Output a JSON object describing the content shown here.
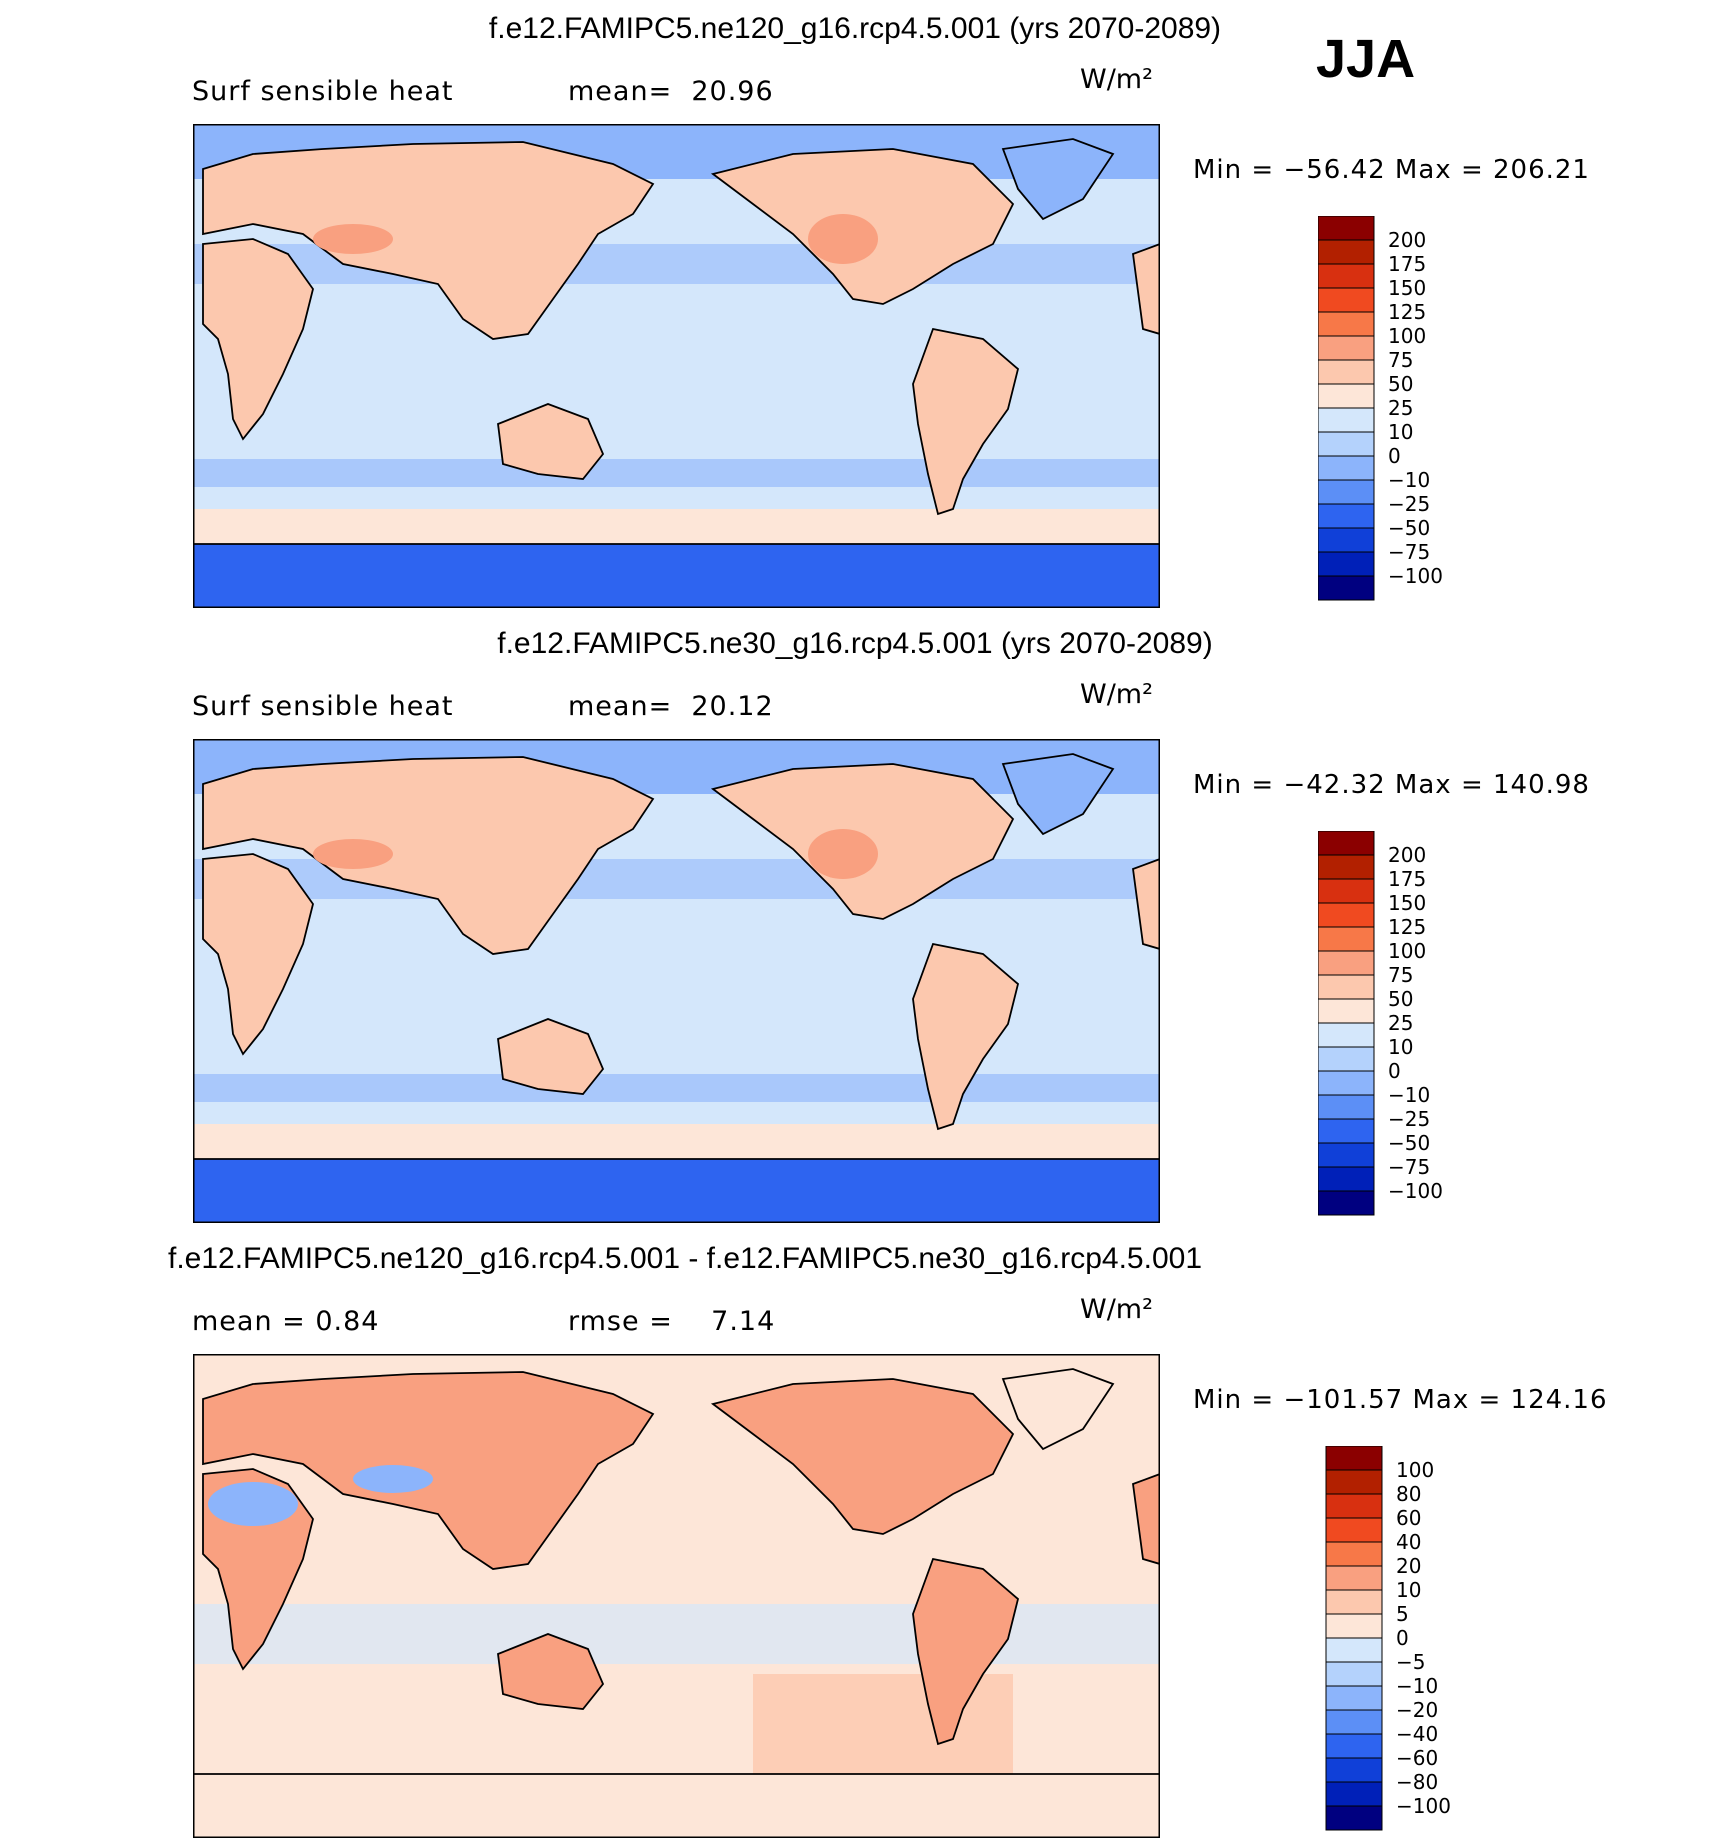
{
  "season_label": "JJA",
  "panels": [
    {
      "title": "f.e12.FAMIPC5.ne120_g16.rcp4.5.001 (yrs 2070-2089)",
      "left_label": "Surf sensible heat",
      "mid_label": "mean=  20.96",
      "units": "W/m²",
      "minmax": "Min = −56.42 Max = 206.21",
      "levels": [
        "200",
        "175",
        "150",
        "125",
        "100",
        "75",
        "50",
        "25",
        "10",
        "0",
        "−10",
        "−25",
        "−50",
        "−75",
        "−100"
      ],
      "colors": [
        "#8b0000",
        "#b22000",
        "#d83010",
        "#f04a20",
        "#f77848",
        "#f9a080",
        "#fcc8ae",
        "#fde6d8",
        "#d4e7fb",
        "#b4d2fc",
        "#8cb4fb",
        "#5c8ff6",
        "#2e64f0",
        "#1040d8",
        "#0020b8",
        "#000080"
      ]
    },
    {
      "title": "f.e12.FAMIPC5.ne30_g16.rcp4.5.001 (yrs 2070-2089)",
      "left_label": "Surf sensible heat",
      "mid_label": "mean=  20.12",
      "units": "W/m²",
      "minmax": "Min = −42.32 Max = 140.98",
      "levels": [
        "200",
        "175",
        "150",
        "125",
        "100",
        "75",
        "50",
        "25",
        "10",
        "0",
        "−10",
        "−25",
        "−50",
        "−75",
        "−100"
      ],
      "colors": [
        "#8b0000",
        "#b22000",
        "#d83010",
        "#f04a20",
        "#f77848",
        "#f9a080",
        "#fcc8ae",
        "#fde6d8",
        "#d4e7fb",
        "#b4d2fc",
        "#8cb4fb",
        "#5c8ff6",
        "#2e64f0",
        "#1040d8",
        "#0020b8",
        "#000080"
      ]
    },
    {
      "title": "f.e12.FAMIPC5.ne120_g16.rcp4.5.001 - f.e12.FAMIPC5.ne30_g16.rcp4.5.001",
      "left_label": "mean =    0.84",
      "mid_label": "rmse =    7.14",
      "units": "W/m²",
      "minmax": "Min = −101.57 Max = 124.16",
      "levels": [
        "100",
        "80",
        "60",
        "40",
        "20",
        "10",
        "5",
        "0",
        "−5",
        "−10",
        "−20",
        "−40",
        "−60",
        "−80",
        "−100"
      ],
      "colors": [
        "#8b0000",
        "#b22000",
        "#d83010",
        "#f04a20",
        "#f77848",
        "#f9a080",
        "#fcc8ae",
        "#fde6d8",
        "#d4e7fb",
        "#b4d2fc",
        "#8cb4fb",
        "#5c8ff6",
        "#2e64f0",
        "#1040d8",
        "#0020b8",
        "#000080"
      ]
    }
  ],
  "map_colors": {
    "ocean_mid": "#d4e7fb",
    "ocean_north": "#8cb4fb",
    "land": "#fcc8ae",
    "land_hot": "#f9a080",
    "antarctic": "#2e64f0",
    "storm_track": "#fde6d8",
    "diff_ocean": "#fde6d8",
    "diff_land": "#f9a080",
    "diff_neg": "#8cb4fb"
  }
}
